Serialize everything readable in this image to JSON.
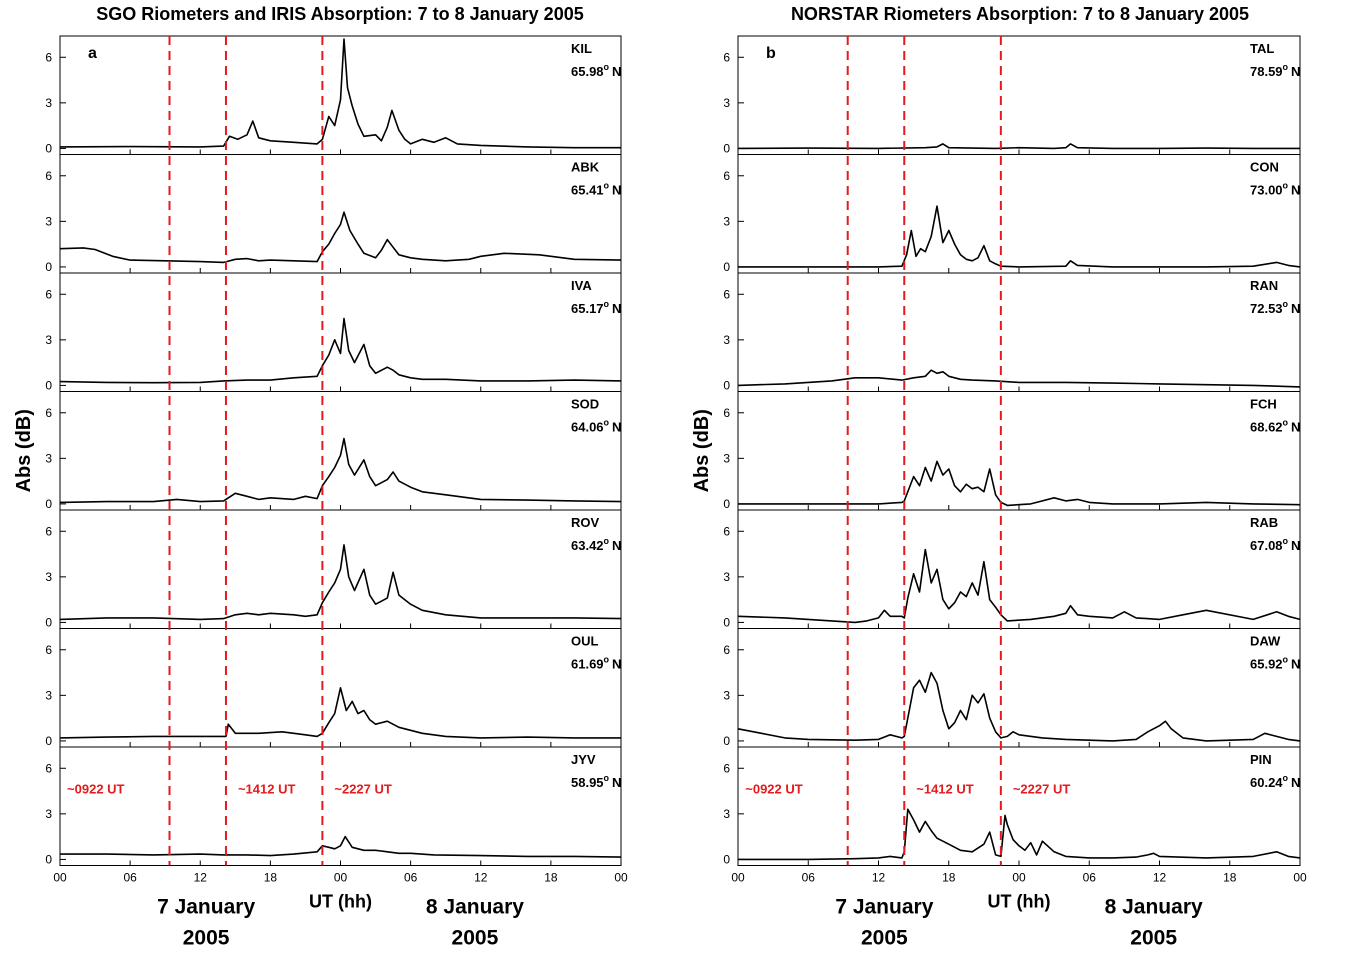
{
  "chart_data": [
    {
      "type": "line",
      "panel_letter": "a",
      "title": "SGO Riometers and IRIS Absorption: 7 to 8 January 2005",
      "ylabel": "Abs (dB)",
      "ylim": [
        -0.4,
        7.4
      ],
      "yticks": [
        "0",
        "3",
        "6"
      ],
      "xticks": [
        "00",
        "06",
        "12",
        "18",
        "00",
        "06",
        "12",
        "18",
        "00"
      ],
      "xlim": [
        0,
        48
      ],
      "xlabel": "UT (hh)",
      "date_labels": [
        {
          "line1": "7 January",
          "line2": "2005"
        },
        {
          "line1": "8 January",
          "line2": "2005"
        }
      ],
      "events": [
        {
          "hour": 9.37,
          "label": "~0922 UT"
        },
        {
          "hour": 14.2,
          "label": "~1412 UT"
        },
        {
          "hour": 22.45,
          "label": "~2227 UT"
        }
      ],
      "stations": [
        {
          "code": "KIL",
          "lat": "65.98",
          "deg": "o",
          "ns": "N",
          "x": [
            0,
            6,
            12,
            14,
            14.5,
            15.2,
            16,
            16.5,
            17,
            18,
            20,
            22,
            22.45,
            23,
            23.5,
            24,
            24.3,
            24.6,
            25,
            25.5,
            26,
            27,
            27.5,
            28,
            28.4,
            29,
            29.5,
            30,
            31,
            32,
            33,
            34,
            36,
            40,
            44,
            48
          ],
          "y": [
            0.1,
            0.12,
            0.1,
            0.15,
            0.8,
            0.6,
            0.9,
            1.8,
            0.7,
            0.5,
            0.4,
            0.3,
            0.6,
            2.1,
            1.5,
            3.2,
            7.2,
            4.0,
            2.8,
            1.6,
            0.8,
            0.9,
            0.5,
            1.4,
            2.5,
            1.2,
            0.6,
            0.3,
            0.6,
            0.4,
            0.7,
            0.3,
            0.2,
            0.1,
            0.05,
            0.05
          ]
        },
        {
          "code": "ABK",
          "lat": "65.41",
          "deg": "o",
          "ns": "N",
          "x": [
            0,
            2,
            3,
            4.5,
            6,
            9,
            12,
            14,
            15,
            16,
            17,
            18,
            20,
            22,
            22.45,
            23,
            23.5,
            24,
            24.3,
            24.8,
            25.5,
            26,
            27,
            27.5,
            28,
            28.4,
            29,
            30,
            31,
            33,
            35,
            36,
            38,
            41,
            44,
            48
          ],
          "y": [
            1.2,
            1.25,
            1.15,
            0.7,
            0.45,
            0.4,
            0.35,
            0.3,
            0.5,
            0.55,
            0.4,
            0.45,
            0.4,
            0.35,
            1.0,
            1.5,
            2.2,
            2.8,
            3.6,
            2.4,
            1.5,
            0.9,
            0.6,
            1.1,
            1.8,
            1.4,
            0.8,
            0.6,
            0.5,
            0.4,
            0.5,
            0.7,
            0.9,
            0.8,
            0.5,
            0.45
          ]
        },
        {
          "code": "IVA",
          "lat": "65.17",
          "deg": "o",
          "ns": "N",
          "x": [
            0,
            4,
            8,
            12,
            14,
            16,
            18,
            20,
            22,
            22.45,
            23,
            23.5,
            24,
            24.3,
            24.7,
            25.2,
            26,
            26.5,
            27,
            28,
            28.5,
            29,
            30,
            31,
            33,
            36,
            40,
            44,
            48
          ],
          "y": [
            0.25,
            0.2,
            0.18,
            0.2,
            0.3,
            0.35,
            0.35,
            0.5,
            0.6,
            1.3,
            2.0,
            3.0,
            2.1,
            4.4,
            2.3,
            1.5,
            2.7,
            1.3,
            0.8,
            1.2,
            1.0,
            0.7,
            0.5,
            0.4,
            0.4,
            0.3,
            0.3,
            0.35,
            0.3
          ]
        },
        {
          "code": "SOD",
          "lat": "64.06",
          "deg": "o",
          "ns": "N",
          "x": [
            0,
            4,
            8,
            10,
            12,
            14,
            15,
            16,
            17,
            18,
            20,
            21,
            22,
            22.45,
            23,
            23.5,
            24,
            24.3,
            24.7,
            25.2,
            26,
            26.5,
            27,
            28,
            28.5,
            29,
            30,
            31,
            33,
            36,
            40,
            44,
            48
          ],
          "y": [
            0.1,
            0.15,
            0.15,
            0.3,
            0.15,
            0.2,
            0.7,
            0.5,
            0.3,
            0.4,
            0.3,
            0.5,
            0.35,
            1.2,
            1.8,
            2.4,
            3.2,
            4.3,
            2.6,
            1.9,
            2.9,
            1.8,
            1.2,
            1.6,
            2.1,
            1.5,
            1.1,
            0.8,
            0.6,
            0.3,
            0.25,
            0.2,
            0.15
          ]
        },
        {
          "code": "ROV",
          "lat": "63.42",
          "deg": "o",
          "ns": "N",
          "x": [
            0,
            4,
            8,
            12,
            14,
            15,
            16,
            17,
            18,
            20,
            21,
            22,
            22.45,
            23,
            23.5,
            24,
            24.3,
            24.7,
            25.2,
            26,
            26.5,
            27,
            28,
            28.5,
            29,
            30,
            31,
            33,
            36,
            40,
            44,
            48
          ],
          "y": [
            0.2,
            0.3,
            0.3,
            0.2,
            0.25,
            0.5,
            0.6,
            0.5,
            0.6,
            0.5,
            0.4,
            0.5,
            1.3,
            2.0,
            2.6,
            3.5,
            5.1,
            3.0,
            2.1,
            3.5,
            1.8,
            1.2,
            1.6,
            3.3,
            1.8,
            1.2,
            0.8,
            0.5,
            0.3,
            0.3,
            0.3,
            0.25
          ]
        },
        {
          "code": "OUL",
          "lat": "61.69",
          "deg": "o",
          "ns": "N",
          "x": [
            0,
            4,
            8,
            12,
            14.2,
            14.4,
            15,
            17,
            19,
            21,
            22,
            22.45,
            23,
            23.5,
            24,
            24.5,
            25,
            25.5,
            26,
            26.5,
            27,
            28,
            29,
            30,
            31,
            33,
            36,
            40,
            44,
            48
          ],
          "y": [
            0.2,
            0.25,
            0.3,
            0.3,
            0.3,
            1.1,
            0.5,
            0.5,
            0.6,
            0.4,
            0.3,
            0.5,
            1.2,
            1.8,
            3.5,
            2.0,
            2.6,
            1.8,
            2.0,
            1.4,
            1.1,
            1.3,
            0.9,
            0.7,
            0.5,
            0.3,
            0.2,
            0.25,
            0.2,
            0.2
          ]
        },
        {
          "code": "JYV",
          "lat": "58.95",
          "deg": "o",
          "ns": "N",
          "x": [
            0,
            4,
            8,
            12,
            14,
            16,
            18,
            20,
            22,
            22.45,
            23,
            23.5,
            24,
            24.4,
            25,
            26,
            27,
            28,
            29,
            30,
            32,
            36,
            40,
            44,
            48
          ],
          "y": [
            0.35,
            0.35,
            0.3,
            0.35,
            0.3,
            0.3,
            0.25,
            0.35,
            0.5,
            0.9,
            0.8,
            0.7,
            0.9,
            1.5,
            0.8,
            0.6,
            0.6,
            0.5,
            0.4,
            0.4,
            0.3,
            0.25,
            0.2,
            0.2,
            0.15
          ]
        }
      ]
    },
    {
      "type": "line",
      "panel_letter": "b",
      "title": "NORSTAR Riometers Absorption: 7 to 8 January 2005",
      "ylabel": "Abs (dB)",
      "ylim": [
        -0.4,
        7.4
      ],
      "yticks": [
        "0",
        "3",
        "6"
      ],
      "xticks": [
        "00",
        "06",
        "12",
        "18",
        "00",
        "06",
        "12",
        "18",
        "00"
      ],
      "xlim": [
        0,
        48
      ],
      "xlabel": "UT (hh)",
      "date_labels": [
        {
          "line1": "7 January",
          "line2": "2005"
        },
        {
          "line1": "8 January",
          "line2": "2005"
        }
      ],
      "events": [
        {
          "hour": 9.37,
          "label": "~0922 UT"
        },
        {
          "hour": 14.2,
          "label": "~1412 UT"
        },
        {
          "hour": 22.45,
          "label": "~2227 UT"
        }
      ],
      "stations": [
        {
          "code": "TAL",
          "lat": "78.59",
          "deg": "o",
          "ns": "N",
          "x": [
            0,
            6,
            12,
            16,
            17,
            17.5,
            18,
            22,
            24,
            27,
            28,
            28.4,
            29,
            32,
            36,
            40,
            44,
            48
          ],
          "y": [
            0.0,
            0.02,
            0.0,
            0.05,
            0.1,
            0.3,
            0.05,
            0.0,
            0.05,
            0.0,
            0.05,
            0.3,
            0.05,
            0.0,
            0.0,
            0.02,
            0.0,
            0.0
          ]
        },
        {
          "code": "CON",
          "lat": "73.00",
          "deg": "o",
          "ns": "N",
          "x": [
            0,
            6,
            12,
            14,
            14.4,
            14.8,
            15.2,
            15.6,
            16,
            16.5,
            17,
            17.5,
            18,
            18.5,
            19,
            19.5,
            20,
            20.5,
            21,
            21.5,
            22,
            22.45,
            24,
            28,
            28.4,
            29,
            32,
            36,
            40,
            44,
            46,
            47,
            48
          ],
          "y": [
            0.0,
            0.0,
            0.0,
            0.05,
            0.8,
            2.4,
            0.7,
            1.2,
            1.0,
            2.0,
            4.0,
            1.6,
            2.4,
            1.5,
            0.8,
            0.5,
            0.4,
            0.6,
            1.4,
            0.4,
            0.2,
            0.05,
            0.0,
            0.05,
            0.4,
            0.1,
            0.0,
            0.0,
            0.0,
            0.05,
            0.3,
            0.1,
            0.0
          ]
        },
        {
          "code": "RAN",
          "lat": "72.53",
          "deg": "o",
          "ns": "N",
          "x": [
            0,
            4,
            8,
            10,
            12,
            14,
            15,
            16,
            16.5,
            17,
            17.5,
            18,
            19,
            20,
            22,
            24,
            28,
            32,
            36,
            40,
            44,
            48
          ],
          "y": [
            0.0,
            0.1,
            0.3,
            0.5,
            0.5,
            0.35,
            0.5,
            0.6,
            1.0,
            0.8,
            0.9,
            0.6,
            0.4,
            0.35,
            0.3,
            0.2,
            0.2,
            0.15,
            0.1,
            0.05,
            0.0,
            -0.1
          ]
        },
        {
          "code": "FCH",
          "lat": "68.62",
          "deg": "o",
          "ns": "N",
          "x": [
            0,
            6,
            12,
            14,
            14.2,
            15,
            15.5,
            16,
            16.5,
            17,
            17.5,
            18,
            18.5,
            19,
            19.5,
            20,
            20.5,
            21,
            21.5,
            22,
            22.45,
            23,
            25,
            26,
            27,
            28,
            29,
            30,
            32,
            36,
            40,
            44,
            48
          ],
          "y": [
            0.0,
            0.0,
            0.0,
            0.1,
            0.2,
            1.8,
            1.2,
            2.4,
            1.5,
            2.8,
            1.9,
            2.3,
            1.2,
            0.8,
            1.3,
            1.0,
            1.1,
            0.8,
            2.3,
            0.6,
            0.1,
            -0.1,
            0.0,
            0.2,
            0.4,
            0.2,
            0.3,
            0.1,
            0.0,
            0.0,
            0.1,
            0.0,
            -0.05
          ]
        },
        {
          "code": "RAB",
          "lat": "67.08",
          "deg": "o",
          "ns": "N",
          "x": [
            0,
            4,
            8,
            10,
            11,
            12,
            12.5,
            13,
            14,
            14.2,
            14.5,
            15,
            15.5,
            16,
            16.5,
            17,
            17.5,
            18,
            18.5,
            19,
            19.5,
            20,
            20.5,
            21,
            21.5,
            22,
            22.45,
            23,
            25,
            27,
            28,
            28.4,
            29,
            30,
            32,
            33,
            34,
            36,
            38,
            40,
            44,
            46,
            47,
            48
          ],
          "y": [
            0.4,
            0.3,
            0.1,
            0.0,
            0.1,
            0.3,
            0.8,
            0.4,
            0.4,
            0.3,
            1.6,
            3.2,
            2.0,
            4.8,
            2.6,
            3.5,
            1.5,
            0.9,
            1.3,
            2.0,
            1.7,
            2.6,
            1.8,
            4.0,
            1.5,
            1.0,
            0.5,
            0.1,
            0.2,
            0.4,
            0.6,
            1.1,
            0.5,
            0.4,
            0.3,
            0.7,
            0.3,
            0.2,
            0.5,
            0.8,
            0.2,
            0.7,
            0.4,
            0.2
          ]
        },
        {
          "code": "DAW",
          "lat": "65.92",
          "deg": "o",
          "ns": "N",
          "x": [
            0,
            2,
            4,
            6,
            10,
            12,
            13,
            14,
            14.2,
            15,
            15.5,
            16,
            16.5,
            17,
            17.5,
            18,
            18.5,
            19,
            19.5,
            20,
            20.5,
            21,
            21.5,
            22,
            22.45,
            23,
            23.5,
            24,
            26,
            28,
            32,
            34,
            35,
            36,
            36.5,
            37,
            38,
            40,
            44,
            45,
            46,
            47,
            48
          ],
          "y": [
            0.8,
            0.5,
            0.2,
            0.1,
            0.05,
            0.1,
            0.4,
            0.2,
            0.3,
            3.5,
            4.0,
            3.2,
            4.5,
            3.8,
            2.0,
            0.8,
            1.2,
            2.0,
            1.4,
            3.0,
            2.5,
            3.1,
            1.5,
            0.6,
            0.2,
            0.3,
            0.6,
            0.4,
            0.2,
            0.1,
            0.0,
            0.1,
            0.6,
            1.0,
            1.3,
            0.8,
            0.2,
            0.0,
            0.1,
            0.5,
            0.3,
            0.1,
            0.0
          ]
        },
        {
          "code": "PIN",
          "lat": "60.24",
          "deg": "o",
          "ns": "N",
          "x": [
            0,
            6,
            10,
            12,
            13,
            14,
            14.2,
            14.5,
            15,
            15.5,
            16,
            16.5,
            17,
            18,
            19,
            20,
            21,
            21.5,
            22,
            22.45,
            22.8,
            23,
            23.5,
            24,
            24.5,
            25,
            25.5,
            26,
            27,
            28,
            30,
            32,
            34,
            35,
            35.5,
            36,
            40,
            44,
            46,
            47,
            48
          ],
          "y": [
            0.0,
            0.0,
            0.05,
            0.1,
            0.2,
            0.1,
            0.5,
            3.3,
            2.6,
            1.8,
            2.5,
            1.9,
            1.4,
            1.0,
            0.6,
            0.5,
            1.0,
            1.8,
            0.3,
            0.2,
            2.9,
            2.3,
            1.3,
            0.9,
            0.6,
            1.1,
            0.3,
            1.2,
            0.5,
            0.2,
            0.1,
            0.1,
            0.15,
            0.3,
            0.4,
            0.2,
            0.1,
            0.2,
            0.5,
            0.2,
            0.1
          ]
        }
      ]
    }
  ]
}
